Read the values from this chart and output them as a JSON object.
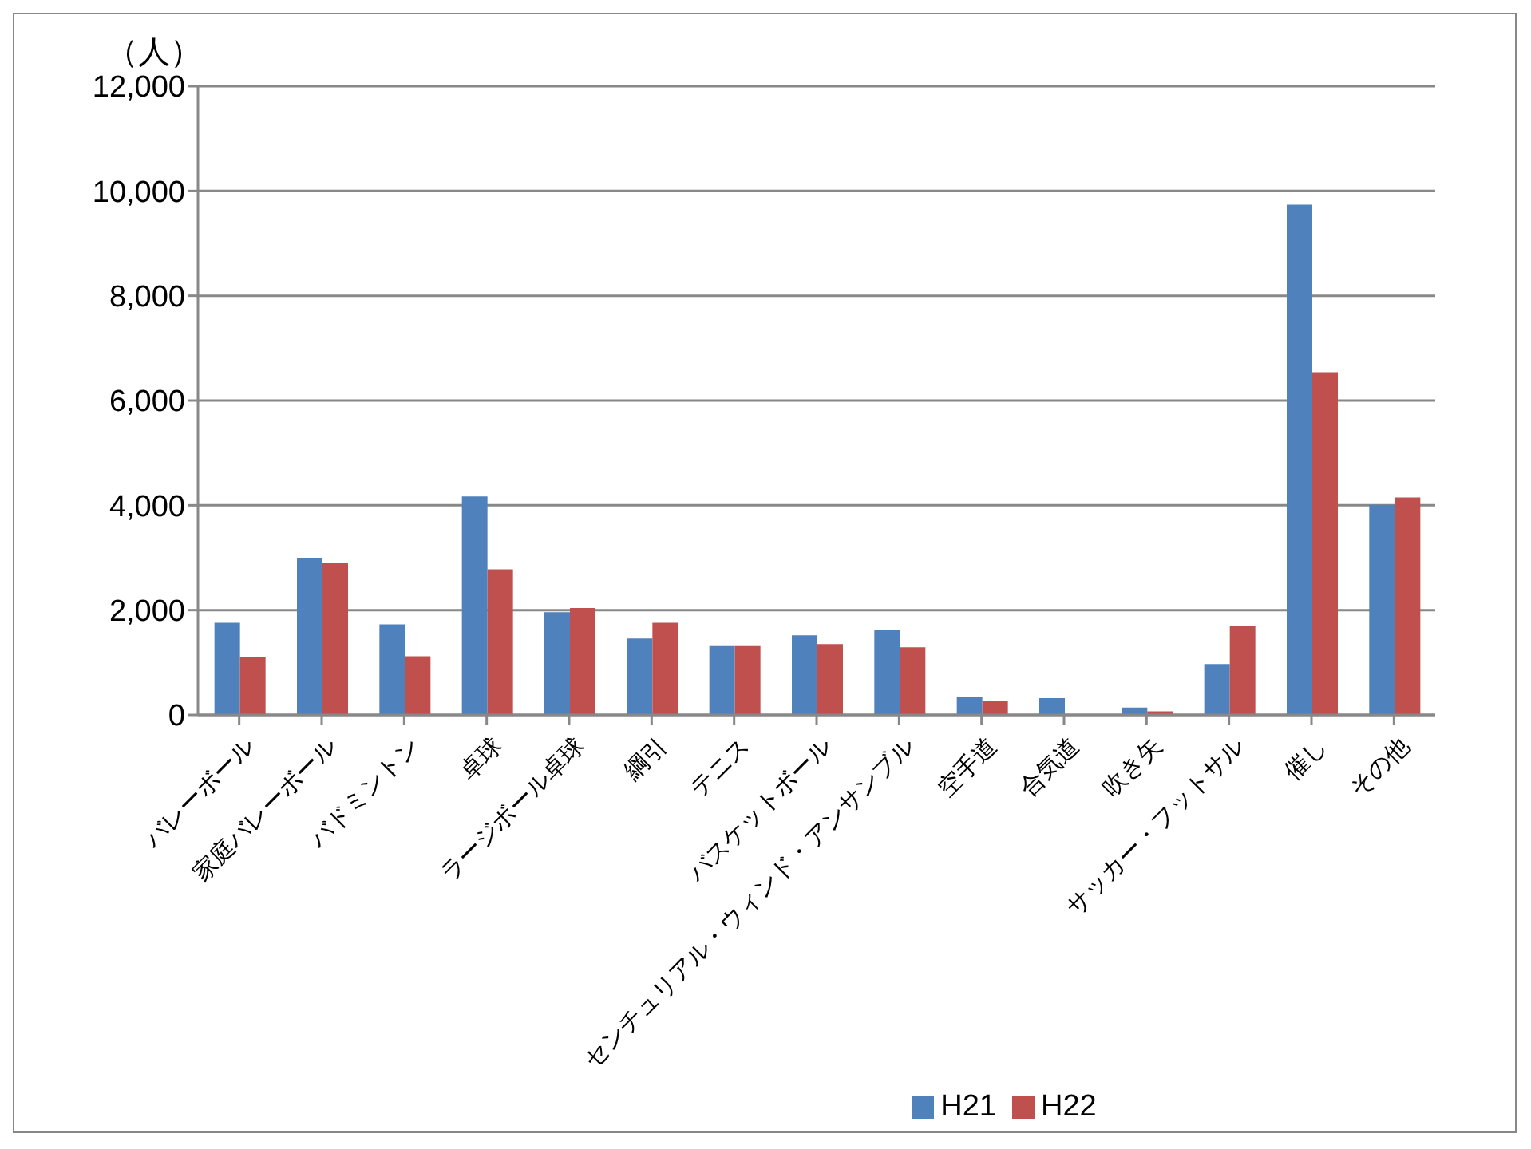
{
  "chart_data": {
    "type": "bar",
    "ylabel": "（人）",
    "categories": [
      "バレーボール",
      "家庭バレーボール",
      "バドミントン",
      "卓球",
      "ラージボール卓球",
      "綱引",
      "テニス",
      "バスケットボール",
      "センチュリアル・ウィンド・アンサンブル",
      "空手道",
      "合気道",
      "吹き矢",
      "サッカー・フットサル",
      "催し",
      "その他"
    ],
    "series": [
      {
        "name": "H21",
        "color": "#4f81bd",
        "values": [
          1760,
          3000,
          1730,
          4170,
          1960,
          1460,
          1330,
          1520,
          1630,
          340,
          320,
          140,
          970,
          9740,
          4010
        ]
      },
      {
        "name": "H22",
        "color": "#c0504d",
        "values": [
          1100,
          2900,
          1120,
          2780,
          2040,
          1760,
          1330,
          1350,
          1290,
          270,
          null,
          70,
          1690,
          6540,
          4150
        ]
      }
    ],
    "ylim": [
      0,
      12000
    ],
    "yticks": [
      0,
      {
        "value": 2000,
        "label": "2,000"
      },
      {
        "value": 4000,
        "label": "4,000"
      },
      {
        "value": 6000,
        "label": "6,000"
      },
      {
        "value": 8000,
        "label": "8,000"
      },
      {
        "value": 10000,
        "label": "10,000"
      },
      {
        "value": 12000,
        "label": "12,000"
      }
    ],
    "grid": "y",
    "legend": "bottom"
  }
}
